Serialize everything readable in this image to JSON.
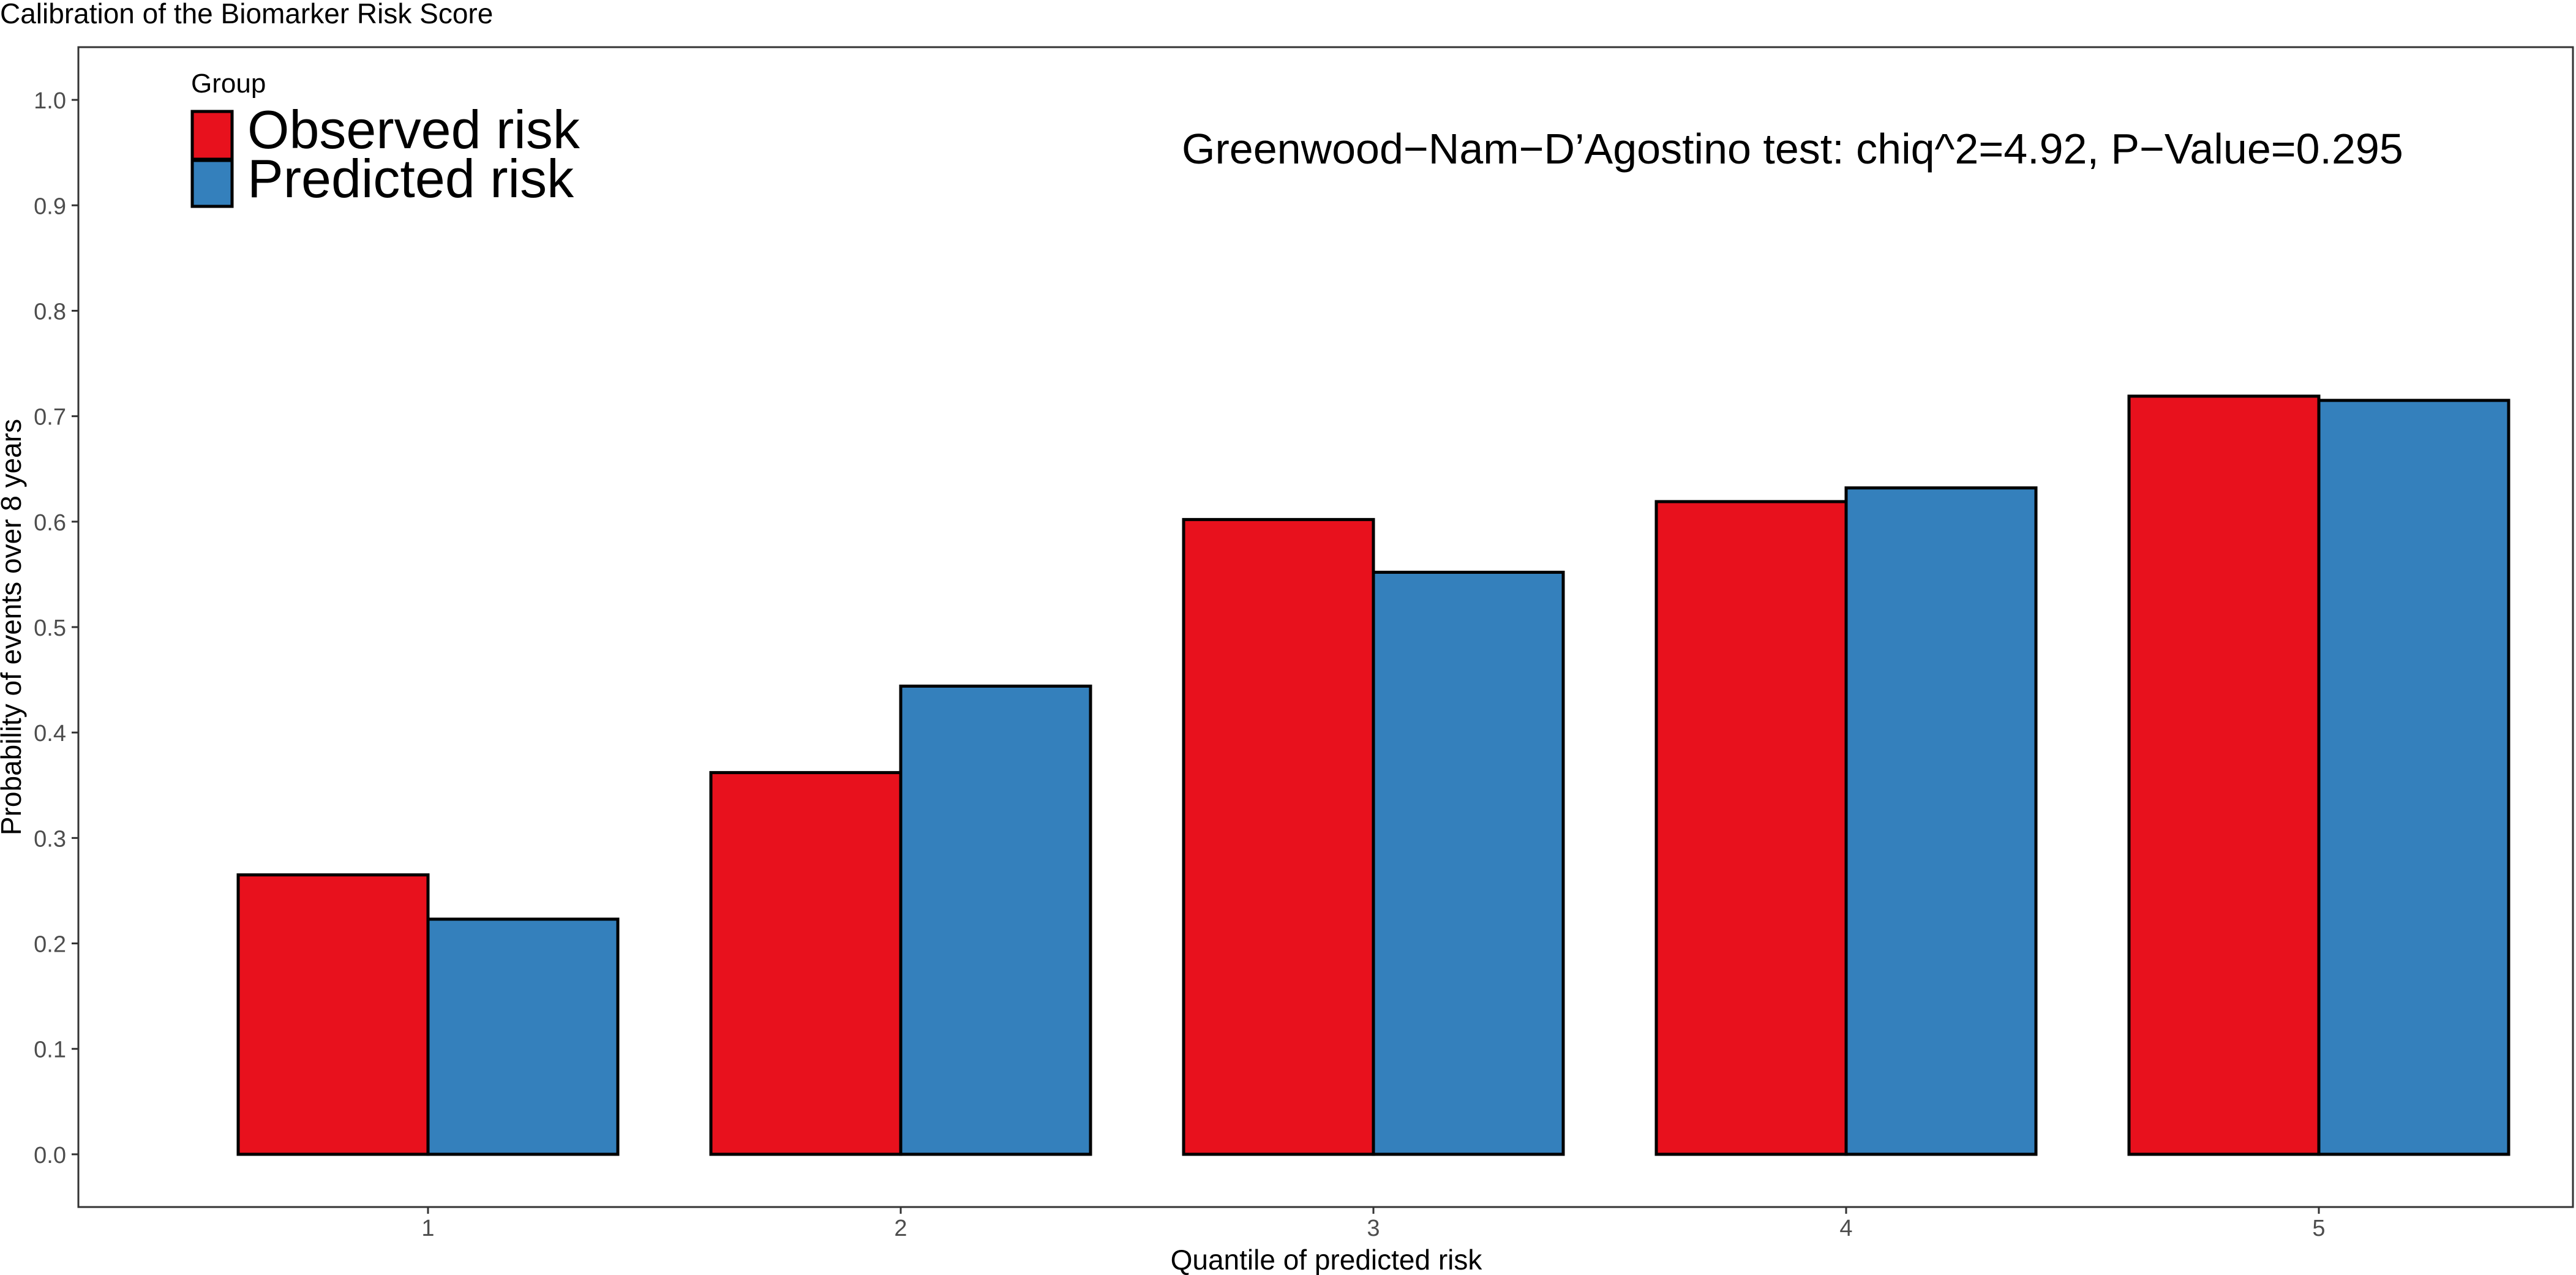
{
  "chart_data": {
    "type": "bar",
    "title": "Calibration of the Biomarker Risk Score",
    "xlabel": "Quantile of predicted risk",
    "ylabel": "Probability of events over 8 years",
    "categories": [
      "1",
      "2",
      "3",
      "4",
      "5"
    ],
    "ylim": [
      -0.05,
      1.05
    ],
    "yticks": [
      "0.0",
      "0.1",
      "0.2",
      "0.3",
      "0.4",
      "0.5",
      "0.6",
      "0.7",
      "0.8",
      "0.9",
      "1.0"
    ],
    "series": [
      {
        "name": "Observed risk",
        "color": "#E8111D",
        "values": [
          0.265,
          0.362,
          0.602,
          0.619,
          0.719
        ]
      },
      {
        "name": "Predicted risk",
        "color": "#3480BC",
        "values": [
          0.223,
          0.444,
          0.552,
          0.632,
          0.715
        ]
      }
    ],
    "legend": {
      "title": "Group",
      "placement": "top-left"
    },
    "annotation": "Greenwood−Nam−D’Agostino test: chiq^2=4.92, P−Value=0.295",
    "grid": false
  }
}
